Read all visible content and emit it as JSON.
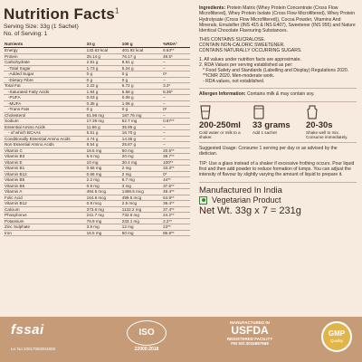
{
  "nutrition": {
    "title": "Nutrition Facts",
    "title_sup": "1",
    "serving_size": "Serving Size: 33g (1 Sachet)",
    "servings": "No. of Serving: 1",
    "columns": [
      "Nutrients",
      "33 g",
      "100 g",
      "%RDA²"
    ],
    "rows": [
      {
        "name": "Energy",
        "a": "132.63 kcal",
        "b": "401.92 kcal",
        "c": "6.63**",
        "ind": false
      },
      {
        "name": "Protein",
        "a": "25.14 g",
        "b": "76.17 g",
        "c": "46.5*",
        "ind": false
      },
      {
        "name": "Carbohydrate",
        "a": "2.81 g",
        "b": "8.51 g",
        "c": "–",
        "ind": false
      },
      {
        "name": "-Total Sugar",
        "a": "1.73 g",
        "b": "5.24 g",
        "c": "–",
        "ind": true
      },
      {
        "name": "-Added Sugar",
        "a": "0 g",
        "b": "0 g",
        "c": "0*",
        "ind": true
      },
      {
        "name": "-Dietary Fibre",
        "a": "0 g",
        "b": "0 g",
        "c": "–",
        "ind": true
      },
      {
        "name": "Total Fat",
        "a": "2.22 g",
        "b": "6.72 g",
        "c": "3.3*",
        "ind": false
      },
      {
        "name": "-Saturated Fatty Acids",
        "a": "1.84 g",
        "b": "5.58 g",
        "c": "8.36*",
        "ind": true
      },
      {
        "name": "-PUFA",
        "a": "0.03 g",
        "b": "0.08 g",
        "c": "–",
        "ind": true
      },
      {
        "name": "-MUFA",
        "a": "0.35 g",
        "b": "1.06 g",
        "c": "–",
        "ind": true
      },
      {
        "name": "-Trans Fats",
        "a": "0 g",
        "b": "0 g",
        "c": "0*",
        "ind": true
      },
      {
        "name": "Cholesterol",
        "a": "61.96 mg",
        "b": "187.76 mg",
        "c": "–",
        "ind": false
      },
      {
        "name": "Sodium",
        "a": "17.39 mg",
        "b": "52.7 mg",
        "c": "0.87**",
        "ind": false
      },
      {
        "name": "Essential Amino Acids",
        "a": "11.86 g",
        "b": "35.95 g",
        "c": "–",
        "ind": false
      },
      {
        "name": "- of which BCAAs",
        "a": "5.51 g",
        "b": "16.70 g",
        "c": "–",
        "ind": true
      },
      {
        "name": "Conditionally Essential Amino Acids",
        "a": "4.74 g",
        "b": "14.35 g",
        "c": "–",
        "ind": false
      },
      {
        "name": "Non Essential Amino Acids",
        "a": "8.54 g",
        "b": "25.87 g",
        "c": "–",
        "ind": false
      },
      {
        "name": "Vitamin C",
        "a": "16.5 mg",
        "b": "50 mg",
        "c": "20.6**",
        "ind": false
      },
      {
        "name": "Vitamin B3",
        "a": "6.6 mg",
        "b": "20 mg",
        "c": "36.7**",
        "ind": false
      },
      {
        "name": "Vitamin E",
        "a": "10 mg",
        "b": "30.4 mg",
        "c": "100**",
        "ind": false
      },
      {
        "name": "Vitamin B1",
        "a": "0.66 mg",
        "b": "2 mg",
        "c": "33.3**",
        "ind": false
      },
      {
        "name": "Vitamin B12",
        "a": "0.66 mg",
        "b": "2 mg",
        "c": "0*",
        "ind": false
      },
      {
        "name": "Vitamin B5",
        "a": "2.2 mg",
        "b": "6.7 mg",
        "c": "44**",
        "ind": false
      },
      {
        "name": "Vitamin B6",
        "a": "0.9 mg",
        "b": "3 mg",
        "c": "37.5**",
        "ind": false
      },
      {
        "name": "Vitamin A",
        "a": "494.5 mcg",
        "b": "1498.5 mcg",
        "c": "49.4**",
        "ind": false
      },
      {
        "name": "Folic Acid",
        "a": "164.8 mcg",
        "b": "499.5 mcg",
        "c": "54.9**",
        "ind": false
      },
      {
        "name": "Vitamin B12",
        "a": "0.8 mcg",
        "b": "2.5 mcg",
        "c": "36.4**",
        "ind": false
      },
      {
        "name": "Calcium",
        "a": "373.6 mg",
        "b": "1132.2 mg",
        "c": "37.4**",
        "ind": false
      },
      {
        "name": "Phosphorus",
        "a": "241.7 mg",
        "b": "732.6 mg",
        "c": "24.2**",
        "ind": false
      },
      {
        "name": "Potassium",
        "a": "76.9 mg",
        "b": "233.1 mg",
        "c": "2.2**",
        "ind": false
      },
      {
        "name": "Zinc Sulphate",
        "a": "3.9 mg",
        "b": "12 mg",
        "c": "23**",
        "ind": false
      },
      {
        "name": "Iron",
        "a": "16.5 mg",
        "b": "50 mg",
        "c": "86.8**",
        "ind": false
      }
    ]
  },
  "ingredients": {
    "label": "Ingredients:",
    "text": "Protein Matrix (Whey Protein Concentrate (Cross Flow Microfiltered), Whey Protein Isolate (Cross Flow Microfiltered), Whey Protein Hydrolysate (Cross Flow Microfiltered)), Cocoa Powder, Vitamins And Minerals, Emulsifier (INS 415 & INS E407), Sweetener (INS 955) and Nature Identical Chocolate Flavouring Substances."
  },
  "notices": [
    "THIS CONTAINS SUCRALOSE.",
    "CONTAIN NON-CALORIC SWEETENER.",
    "CONTAINS NATURALLY OCCURRING SUGARS."
  ],
  "footnotes": [
    "1. All values under nutrition facts are approximate.",
    "2. RDA Values per serving established as per:",
    "* Food Safety and Standards (Labelling and Display) Regulations 2020.",
    "**ICMR 2020, Men-moderate work.",
    "- RDA values, not established."
  ],
  "allergen": {
    "label": "Allergen Information:",
    "text": "Contains milk & may contain soy."
  },
  "directions": [
    {
      "big": "200-250ml",
      "small": "Cold water or milk to a shaker."
    },
    {
      "big": "33 grams",
      "small": "Add 1 sachet"
    },
    {
      "big": "20-30s",
      "small": "Shake well to mix. Consume immediately."
    }
  ],
  "usage": "Suggested Usage: Consume 1 serving per day or as advised by the dietician.",
  "tip": "TIP: Use a glass instead of a shaker if excessive frothing occurs. Pour liquid first and then add powder to reduce formation of lumps. You can adjust the intensity of flavour by slightly varying the amount of liquid to prepare it.",
  "made_in": "Manufactured In India",
  "veg": "Vegetarian Product",
  "net_wt": "Net Wt. 33g x 7 = 231g",
  "badges": {
    "fssai": "fssai",
    "fssai_lic": "Lic No:10017050004808",
    "iso": "ISO",
    "iso_std": "22000:2018",
    "usda_top": "MANUFACTURED IN",
    "usda": "USFDA",
    "usda_sub1": "REGISTERED FACILITY",
    "usda_sub2": "FEI NO:3015587968",
    "gmp": "GMP",
    "gmp_sub": "Quality"
  }
}
